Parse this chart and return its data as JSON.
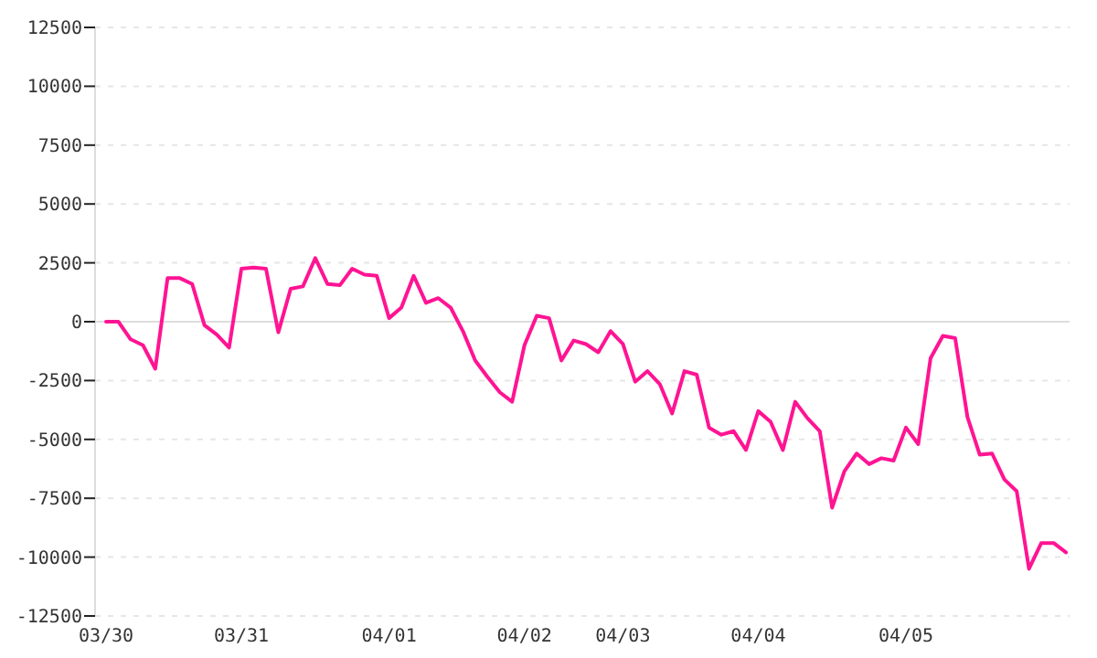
{
  "chart_data": {
    "type": "line",
    "categories": [
      "03/30",
      null,
      null,
      null,
      null,
      null,
      null,
      null,
      null,
      null,
      null,
      "03/31",
      null,
      null,
      null,
      null,
      null,
      null,
      null,
      null,
      null,
      null,
      null,
      "04/01",
      null,
      null,
      null,
      null,
      null,
      null,
      null,
      null,
      null,
      null,
      "04/02",
      null,
      null,
      null,
      null,
      null,
      null,
      null,
      "04/03",
      null,
      null,
      null,
      null,
      null,
      null,
      null,
      null,
      null,
      null,
      "04/04",
      null,
      null,
      null,
      null,
      null,
      null,
      null,
      null,
      null,
      null,
      null,
      "04/05",
      null,
      null,
      null,
      null,
      null,
      null,
      null,
      null,
      null,
      null,
      null,
      null,
      null
    ],
    "series": [
      {
        "color": "#ff1493",
        "values": [
          0,
          0,
          -750,
          -1000,
          -2000,
          1850,
          1850,
          1600,
          -150,
          -550,
          -1100,
          2250,
          2300,
          2250,
          -450,
          1400,
          1500,
          2700,
          1600,
          1550,
          2250,
          2000,
          1950,
          150,
          600,
          1950,
          800,
          1000,
          600,
          -400,
          -1650,
          -2350,
          -3000,
          -3400,
          -1000,
          250,
          150,
          -1650,
          -800,
          -950,
          -1300,
          -400,
          -950,
          -2550,
          -2100,
          -2650,
          -3900,
          -2100,
          -2250,
          -4500,
          -4800,
          -4650,
          -5450,
          -3800,
          -4250,
          -5450,
          -3400,
          -4100,
          -4650,
          -7900,
          -6350,
          -5600,
          -6050,
          -5800,
          -5900,
          -4500,
          -5200,
          -1550,
          -600,
          -700,
          -4050,
          -5650,
          -5600,
          -6700,
          -7200,
          -10500,
          -9400,
          -9400,
          -9800
        ]
      }
    ],
    "ylim": [
      -12500,
      12500
    ],
    "yticks": [
      -12500,
      -10000,
      -7500,
      -5000,
      -2500,
      0,
      2500,
      5000,
      7500,
      10000,
      12500
    ],
    "grid": "y",
    "ref_lines": [
      {
        "axis": "y",
        "value": 0,
        "color": "#dddddd"
      }
    ],
    "marker": "none",
    "line_style": "solid"
  }
}
